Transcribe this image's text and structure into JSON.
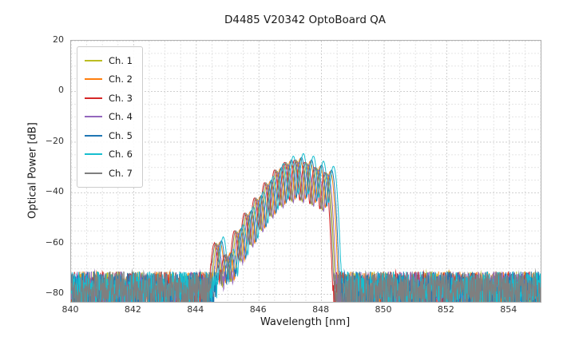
{
  "chart_data": {
    "type": "line",
    "title": "D4485 V20342 OptoBoard QA",
    "xlabel": "Wavelength [nm]",
    "ylabel": "Optical Power [dB]",
    "xlim": [
      840,
      855
    ],
    "ylim": [
      -83,
      20
    ],
    "xticks": [
      840,
      842,
      844,
      846,
      848,
      850,
      852,
      854
    ],
    "yticks": [
      20,
      0,
      -20,
      -40,
      -60,
      -80
    ],
    "grid": {
      "major": true,
      "minor": true,
      "minor_x_step_nm": 0.5,
      "minor_y_step_db": 5
    },
    "legend_position": "upper-left",
    "noise_floor_db": {
      "top": -71,
      "bottom": -86,
      "mean": -78
    },
    "signal": {
      "start_nm": 844.5,
      "stop_nm": 848.4,
      "first_mode_nm": 844.68,
      "mode_spacing_nm": 0.32,
      "mode_sigma_nm": 0.055,
      "mode_amplitudes_db": [
        -59,
        -64,
        -54,
        -47,
        -41,
        -35,
        -30,
        -27,
        -26,
        -27,
        -29,
        -31
      ],
      "peak_power_db": -25,
      "notch_nm": 845.05
    },
    "series": [
      {
        "name": "Ch. 1",
        "color": "#bcbd22",
        "shift_nm": -0.02,
        "peak_adjust_db": -1.5
      },
      {
        "name": "Ch. 2",
        "color": "#ff7f0e",
        "shift_nm": 0.08,
        "peak_adjust_db": -0.5
      },
      {
        "name": "Ch. 3",
        "color": "#d62728",
        "shift_nm": -0.1,
        "peak_adjust_db": -1.0
      },
      {
        "name": "Ch. 4",
        "color": "#9467bd",
        "shift_nm": 0.02,
        "peak_adjust_db": -2.0
      },
      {
        "name": "Ch. 5",
        "color": "#1f77b4",
        "shift_nm": 0.12,
        "peak_adjust_db": 0.0
      },
      {
        "name": "Ch. 6",
        "color": "#17becf",
        "shift_nm": 0.18,
        "peak_adjust_db": 1.5
      },
      {
        "name": "Ch. 7",
        "color": "#7f7f7f",
        "shift_nm": -0.06,
        "peak_adjust_db": -1.0
      }
    ]
  }
}
